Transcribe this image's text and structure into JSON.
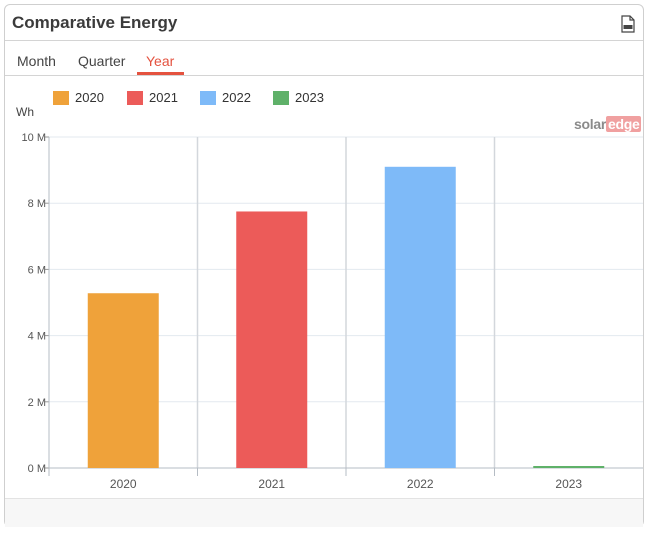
{
  "title": "Comparative Energy",
  "tabs": [
    "Month",
    "Quarter",
    "Year"
  ],
  "active_tab": "Year",
  "unit": "Wh",
  "brand": {
    "part1": "solar",
    "part2": "edge"
  },
  "colors": {
    "accent": "#e4523f"
  },
  "chart_data": {
    "type": "bar",
    "categories": [
      "2020",
      "2021",
      "2022",
      "2023"
    ],
    "values": [
      5280000,
      7750000,
      9100000,
      60000
    ],
    "colors": [
      "#efa23a",
      "#ec5b59",
      "#7ebaf8",
      "#5fb169"
    ],
    "legend": [
      "2020",
      "2021",
      "2022",
      "2023"
    ],
    "ylim": [
      0,
      10000000
    ],
    "yticks": [
      0,
      2000000,
      4000000,
      6000000,
      8000000,
      10000000
    ],
    "ytick_labels": [
      "0 M",
      "2 M",
      "4 M",
      "6 M",
      "8 M",
      "10 M"
    ],
    "ylabel": "Wh",
    "legend_position": "top-left",
    "grid": true
  }
}
